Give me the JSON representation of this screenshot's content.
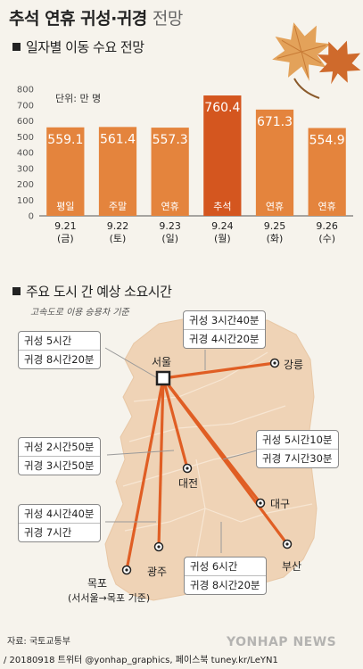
{
  "title_main": "추석 연휴 귀성·귀경",
  "title_light": "전망",
  "section1": "일자별 이동 수요 전망",
  "unit": "단위: 만 명",
  "chart_data": {
    "type": "bar",
    "categories": [
      "9.21",
      "9.22",
      "9.23",
      "9.24",
      "9.25",
      "9.26"
    ],
    "weekdays": [
      "(금)",
      "(토)",
      "(일)",
      "(월)",
      "(화)",
      "(수)"
    ],
    "day_types": [
      "평일",
      "주말",
      "연휴",
      "추석",
      "연휴",
      "연휴"
    ],
    "values": [
      559.1,
      561.4,
      557.3,
      760.4,
      671.3,
      554.9
    ],
    "value_labels": [
      "559.1",
      "561.4",
      "557.3",
      "760.4",
      "671.3",
      "554.9"
    ],
    "ylim": [
      0,
      800
    ],
    "yticks": [
      "0",
      "100",
      "200",
      "300",
      "400",
      "500",
      "600",
      "700",
      "800"
    ],
    "highlight_index": 3,
    "colors": {
      "bar": "#e4843d",
      "highlight": "#d4561f",
      "highlight_label": "#d0421b"
    }
  },
  "section2": "주요 도시 간 예상 소요시간",
  "note": "고속도로 이용 승용차 기준",
  "cities": {
    "seoul": "서울",
    "gangneung": "강릉",
    "daejeon": "대전",
    "daegu": "대구",
    "busan": "부산",
    "gwangju": "광주",
    "mokpo": "목포",
    "mokpo_note": "(서서울→목포 기준)"
  },
  "routes": {
    "gangneung": {
      "go": "귀성 3시간40분",
      "back": "귀경 4시간20분"
    },
    "daejeon": {
      "go": "귀성 5시간",
      "back": "귀경 8시간20분"
    },
    "gwangju": {
      "go": "귀성 2시간50분",
      "back": "귀경 3시간50분"
    },
    "daegu": {
      "go": "귀성 5시간10분",
      "back": "귀경 7시간30분"
    },
    "mokpo": {
      "go": "귀성 4시간40분",
      "back": "귀경 7시간"
    },
    "busan": {
      "go": "귀성 6시간",
      "back": "귀경 8시간20분"
    }
  },
  "source": "자료: 국토교통부",
  "credit": "/ 20180918 트위터 @yonhap_graphics, 페이스북 tuney.kr/LeYN1",
  "watermark": "YONHAP NEWS",
  "colors": {
    "background": "#f6f3ec",
    "map": "#efd3b6",
    "route": "#e05e24"
  }
}
